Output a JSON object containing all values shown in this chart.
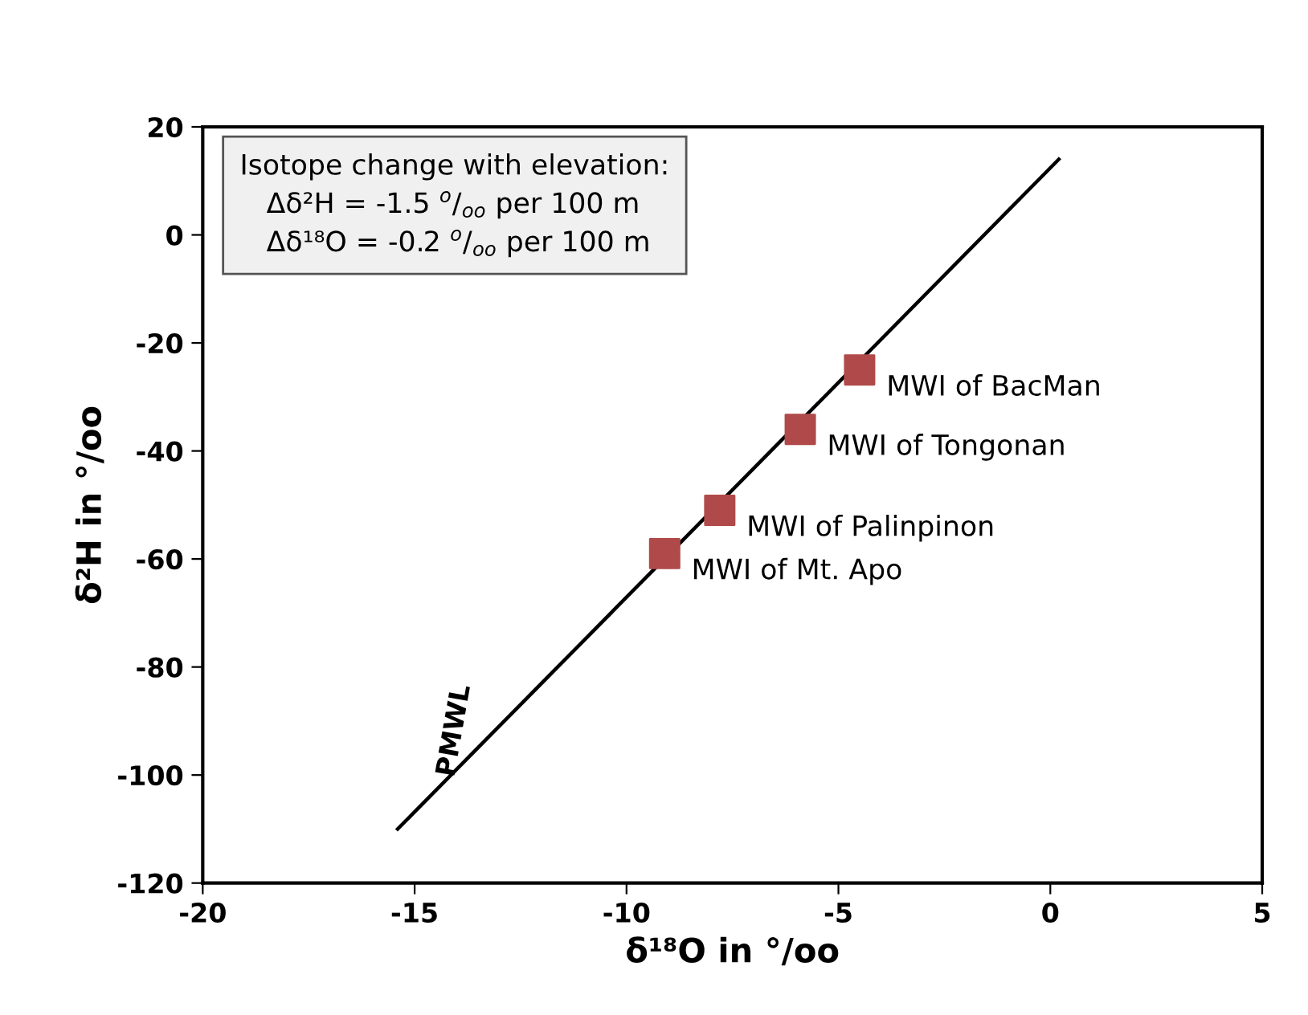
{
  "chart_data": {
    "type": "scatter",
    "xlabel": "δ¹⁸O in °/oo",
    "ylabel": "δ²H in °/oo",
    "xlim": [
      -20,
      5
    ],
    "xticks": [
      -20,
      -15,
      -10,
      -5,
      0,
      5
    ],
    "ylim": [
      -120,
      20
    ],
    "yticks": [
      -120,
      -100,
      -80,
      -60,
      -40,
      -20,
      0,
      20
    ],
    "grid": false,
    "legend": false,
    "marker": "square",
    "series": [
      {
        "name": "PMWL",
        "type": "line",
        "color": "#000000",
        "marker": "none",
        "line_style": "solid",
        "x": [
          -15.4,
          0.2
        ],
        "values": [
          -110,
          14
        ]
      },
      {
        "name": "MWI of BacMan",
        "color": "#b04a4a",
        "x": [
          -4.5
        ],
        "values": [
          -25
        ]
      },
      {
        "name": "MWI of Tongonan",
        "color": "#b04a4a",
        "x": [
          -5.9
        ],
        "values": [
          -36
        ]
      },
      {
        "name": "MWI of Palinpinon",
        "color": "#b04a4a",
        "x": [
          -7.8
        ],
        "values": [
          -51
        ]
      },
      {
        "name": "MWI of Mt. Apo",
        "color": "#b04a4a",
        "x": [
          -9.1
        ],
        "values": [
          -59
        ]
      }
    ],
    "annotations": [
      "Isotope change with elevation:",
      "Δδ²H = -1.5 $^{o}$/$_{oo}$ per 100 m",
      "Δδ¹⁸O = -0.2 $^{o}$/$_{oo}$ per 100 m"
    ]
  }
}
